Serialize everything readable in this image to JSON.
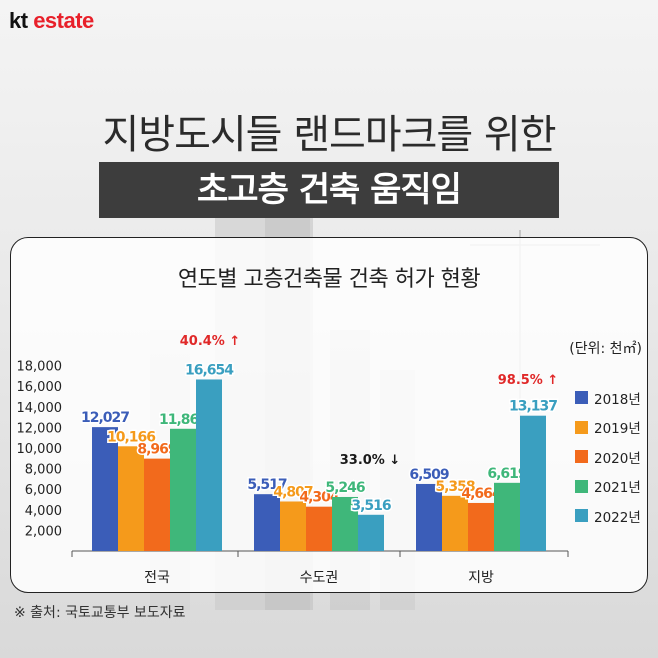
{
  "brand": {
    "kt": "kt",
    "name": "estate"
  },
  "headline": {
    "line1": "지방도시들 랜드마크를 위한",
    "line2": "초고층 건축 움직임"
  },
  "chart_data": {
    "type": "bar",
    "title": "연도별 고층건축물 건축 허가 현황",
    "unit": "(단위: 천㎡)",
    "categories": [
      "전국",
      "수도권",
      "지방"
    ],
    "series": [
      {
        "name": "2018년",
        "color": "#3b5db8",
        "values": [
          12027,
          5517,
          6509
        ],
        "labels": [
          "12,027",
          "5,517",
          "6,509"
        ]
      },
      {
        "name": "2019년",
        "color": "#f59a1b",
        "values": [
          10166,
          4807,
          5358
        ],
        "labels": [
          "10,166",
          "4,807",
          "5,358"
        ]
      },
      {
        "name": "2020년",
        "color": "#f26a1c",
        "values": [
          8969,
          4304,
          4664
        ],
        "labels": [
          "8,969",
          "4,304",
          "4,664"
        ]
      },
      {
        "name": "2021년",
        "color": "#3fb77a",
        "values": [
          11866,
          5246,
          6619
        ],
        "labels": [
          "11,866",
          "5,246",
          "6,619"
        ]
      },
      {
        "name": "2022년",
        "color": "#3a9fc0",
        "values": [
          16654,
          3516,
          13137
        ],
        "labels": [
          "16,654",
          "3,516",
          "13,137"
        ]
      }
    ],
    "yticks": [
      "18,000",
      "16,000",
      "14,000",
      "12,000",
      "10,000",
      "8,000",
      "6,000",
      "4,000",
      "2,000"
    ],
    "ylim": [
      0,
      18000
    ],
    "annotations": [
      {
        "category": 0,
        "text": "40.4%",
        "arrow": "↑",
        "color": "#e02828"
      },
      {
        "category": 1,
        "text": "33.0%",
        "arrow": "↓",
        "color": "#1a1a1a"
      },
      {
        "category": 2,
        "text": "98.5%",
        "arrow": "↑",
        "color": "#e02828"
      }
    ],
    "legend_position": "right"
  },
  "source": "※ 출처: 국토교통부 보도자료"
}
